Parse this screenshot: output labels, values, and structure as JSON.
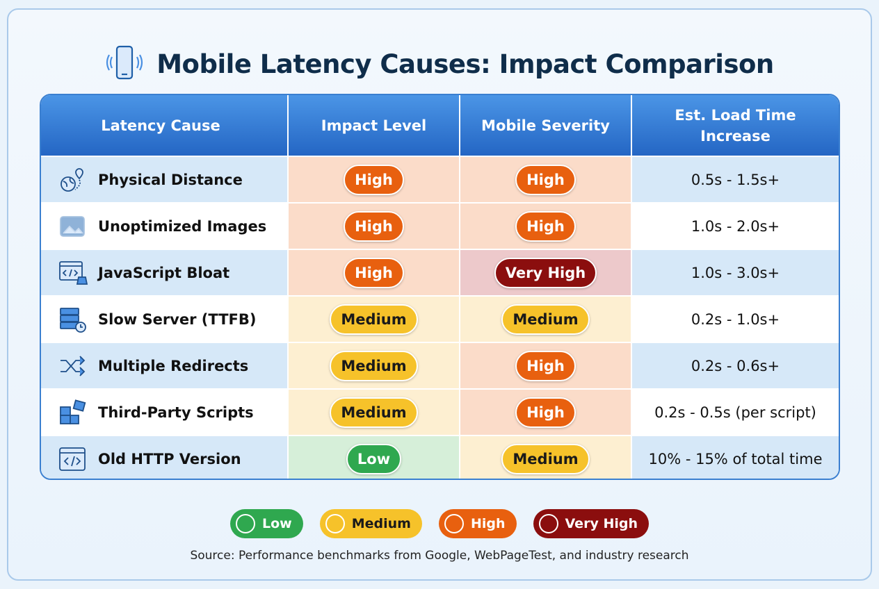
{
  "title": "Mobile Latency Causes: Impact Comparison",
  "colors": {
    "Low": "#2fa84f",
    "Medium": "#f6c22a",
    "High": "#e8600f",
    "Very High": "#8b0e0e",
    "header": "#2f77d3"
  },
  "chart_data": {
    "type": "table",
    "title": "Mobile Latency Causes: Impact Comparison",
    "columns": [
      "Latency Cause",
      "Impact Level",
      "Mobile Severity",
      "Est. Load Time Increase"
    ],
    "rows": [
      {
        "icon": "globe-pin-icon",
        "cause": "Physical Distance",
        "impact": "High",
        "severity": "High",
        "load": "0.5s - 1.5s+"
      },
      {
        "icon": "image-icon",
        "cause": "Unoptimized Images",
        "impact": "High",
        "severity": "High",
        "load": "1.0s - 2.0s+"
      },
      {
        "icon": "code-weight-icon",
        "cause": "JavaScript Bloat",
        "impact": "High",
        "severity": "Very High",
        "load": "1.0s - 3.0s+"
      },
      {
        "icon": "server-clock-icon",
        "cause": "Slow Server (TTFB)",
        "impact": "Medium",
        "severity": "Medium",
        "load": "0.2s - 1.0s+"
      },
      {
        "icon": "shuffle-arrows-icon",
        "cause": "Multiple Redirects",
        "impact": "Medium",
        "severity": "High",
        "load": "0.2s - 0.6s+"
      },
      {
        "icon": "puzzle-icon",
        "cause": "Third-Party Scripts",
        "impact": "Medium",
        "severity": "High",
        "load": "0.2s - 0.5s (per script)"
      },
      {
        "icon": "browser-code-icon",
        "cause": "Old HTTP Version",
        "impact": "Low",
        "severity": "Medium",
        "load": "10% - 15% of total time"
      }
    ],
    "legend": [
      "Low",
      "Medium",
      "High",
      "Very High"
    ]
  },
  "source": "Source: Performance benchmarks from Google, WebPageTest, and industry research"
}
